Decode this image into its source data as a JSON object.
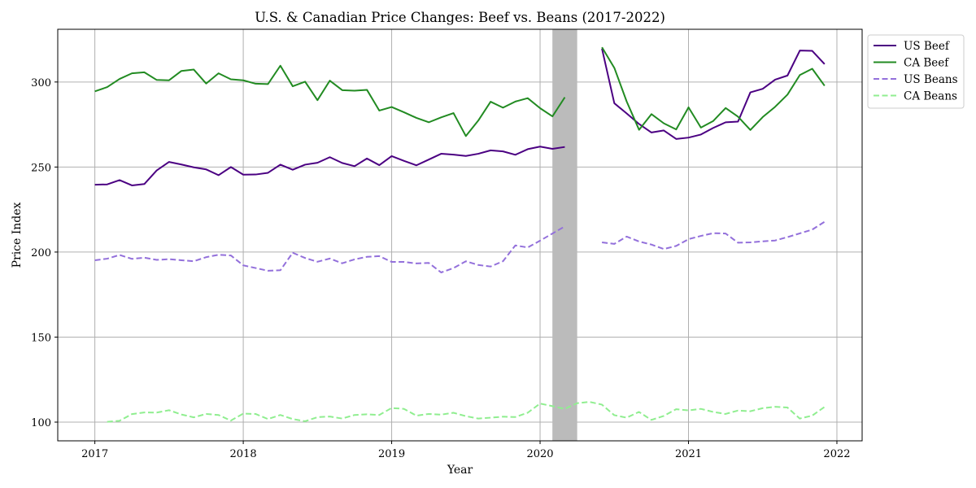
{
  "chart_data": {
    "type": "line",
    "title": "U.S. & Canadian Price Changes: Beef vs. Beans (2017-2022)",
    "xlabel": "Year",
    "ylabel": "Price Index",
    "xlim": [
      2016.75,
      2022.17
    ],
    "ylim": [
      89,
      331
    ],
    "x_ticks": [
      2017,
      2018,
      2019,
      2020,
      2021,
      2022
    ],
    "y_ticks": [
      100,
      150,
      200,
      250,
      300
    ],
    "grid": true,
    "legend_position": "outside-top-right",
    "shaded_region": {
      "x_start": 2020.083,
      "x_end": 2020.25,
      "color": "#bbbbbb"
    },
    "series": [
      {
        "name": "US Beef",
        "color": "#4b0082",
        "dash": "solid",
        "segments": [
          {
            "x_start": 2017.0,
            "values": [
              239.6,
              239.8,
              242.3,
              239.2,
              240.0,
              248.0,
              253.0,
              251.5,
              249.8,
              248.6,
              245.2,
              250.0,
              245.5,
              245.6,
              246.6,
              251.4,
              248.4,
              251.4,
              252.5,
              255.8,
              252.4,
              250.5,
              255.0,
              251.1,
              256.4,
              253.6,
              251.0,
              254.4,
              257.8,
              257.3,
              256.5,
              257.8,
              259.8,
              259.2,
              257.2,
              260.5,
              262.0,
              260.7,
              261.8
            ]
          },
          {
            "x_start": 2020.417,
            "values": [
              319.6,
              287.5,
              281.5,
              275.3,
              270.3,
              271.5,
              266.5,
              267.3,
              269.1,
              273.0,
              276.3,
              276.7,
              293.9,
              296.0,
              301.4,
              303.8,
              318.5,
              318.3,
              310.5
            ]
          }
        ]
      },
      {
        "name": "CA Beef",
        "color": "#228b22",
        "dash": "solid",
        "segments": [
          {
            "x_start": 2017.0,
            "values": [
              294.5,
              297.0,
              301.8,
              305.1,
              305.7,
              301.2,
              301.0,
              306.5,
              307.3,
              299.1,
              305.1,
              301.6,
              301.0,
              299.0,
              298.8,
              309.6,
              297.5,
              300.2,
              289.3,
              300.8,
              295.2,
              294.9,
              295.4,
              283.2,
              285.3,
              282.2,
              278.9,
              276.3,
              279.2,
              281.7,
              268.2,
              277.3,
              288.4,
              284.9,
              288.5,
              290.5,
              284.6,
              279.8,
              291.0
            ]
          },
          {
            "x_start": 2020.417,
            "values": [
              320.4,
              308.3,
              288.5,
              271.9,
              281.1,
              275.7,
              272.1,
              285.1,
              273.2,
              277.1,
              284.7,
              279.6,
              271.8,
              279.4,
              285.4,
              292.6,
              304.1,
              307.8,
              297.8
            ]
          }
        ]
      },
      {
        "name": "US Beans",
        "color": "#9370db",
        "dash": "dashed",
        "segments": [
          {
            "x_start": 2017.0,
            "values": [
              195.2,
              196.1,
              198.3,
              196.0,
              196.7,
              195.4,
              195.8,
              195.2,
              194.6,
              197.0,
              198.4,
              198.0,
              192.2,
              190.6,
              189.0,
              189.3,
              199.6,
              196.5,
              194.3,
              196.2,
              193.4,
              195.7,
              197.2,
              197.6,
              194.2,
              194.2,
              193.3,
              193.6,
              188.0,
              190.6,
              194.6,
              192.4,
              191.5,
              194.6,
              203.9,
              202.7,
              206.7,
              210.9,
              215.1
            ]
          },
          {
            "x_start": 2020.417,
            "values": [
              205.7,
              204.8,
              209.1,
              206.2,
              204.4,
              201.8,
              203.6,
              207.6,
              209.5,
              211.1,
              210.9,
              205.5,
              205.7,
              206.3,
              206.8,
              208.8,
              211.0,
              213.2,
              217.8
            ]
          }
        ]
      },
      {
        "name": "CA Beans",
        "color": "#90ee90",
        "dash": "dashed",
        "segments": [
          {
            "x_start": 2017.083,
            "values": [
              100.2,
              100.8,
              104.7,
              105.7,
              105.6,
              107.0,
              104.5,
              102.8,
              104.8,
              104.2,
              100.9,
              105.0,
              104.8,
              101.8,
              104.2,
              101.8,
              100.5,
              102.9,
              103.3,
              102.1,
              104.2,
              104.6,
              104.2,
              108.3,
              107.8,
              103.8,
              104.8,
              104.4,
              105.5,
              103.5,
              102.1,
              102.6,
              103.2,
              103.0,
              105.5,
              110.9,
              109.4,
              107.8,
              111.1,
              111.9,
              110.3,
              104.1,
              102.6,
              106.0,
              101.3,
              103.6,
              107.6,
              106.9,
              107.8,
              106.0,
              104.8,
              106.8,
              106.4,
              108.2,
              109.0,
              108.6,
              102.1,
              103.8,
              108.9
            ]
          }
        ]
      }
    ]
  }
}
